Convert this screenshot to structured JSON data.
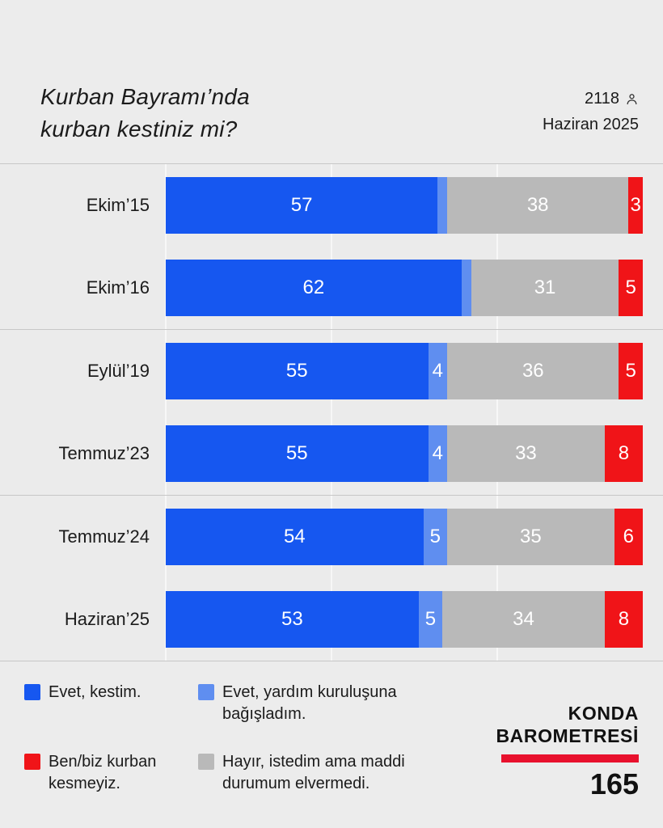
{
  "header": {
    "title_line1": "Kurban Bayramı’nda",
    "title_line2": "kurban kestiniz mi?",
    "sample_size": "2118",
    "date": "Haziran 2025"
  },
  "chart_data": {
    "type": "bar",
    "orientation": "horizontal",
    "stacked": true,
    "title": "Kurban Bayramı’nda kurban kestiniz mi?",
    "xlim": [
      0,
      100
    ],
    "grid": true,
    "rows_per_group": 2,
    "categories": [
      "Ekim’15",
      "Ekim’16",
      "Eylül’19",
      "Temmuz’23",
      "Temmuz’24",
      "Haziran’25"
    ],
    "series": [
      {
        "name": "Evet, kestim.",
        "color": "#1657F0",
        "values": [
          57,
          62,
          55,
          55,
          54,
          53
        ],
        "labels": [
          "57",
          "62",
          "55",
          "55",
          "54",
          "53"
        ]
      },
      {
        "name": "Evet, yardım kuruluşuna bağışladım.",
        "color": "#5F8EF0",
        "values": [
          2,
          2,
          4,
          4,
          5,
          5
        ],
        "labels": [
          "",
          "",
          "4",
          "4",
          "5",
          "5"
        ]
      },
      {
        "name": "Hayır, istedim ama maddi durumum elvermedi.",
        "color": "#B9B9B9",
        "values": [
          38,
          31,
          36,
          33,
          35,
          34
        ],
        "labels": [
          "38",
          "31",
          "36",
          "33",
          "35",
          "34"
        ]
      },
      {
        "name": "Ben/biz kurban kesmeyiz.",
        "color": "#F01418",
        "values": [
          3,
          5,
          5,
          8,
          6,
          8
        ],
        "labels": [
          "3",
          "5",
          "5",
          "8",
          "6",
          "8"
        ]
      }
    ]
  },
  "legend": [
    {
      "label": "Evet, kestim.",
      "color": "#1657F0"
    },
    {
      "label": "Evet, yardım kuruluşuna bağışladım.",
      "color": "#5F8EF0"
    },
    {
      "label": "Ben/biz kurban kesmeyiz.",
      "color": "#F01418"
    },
    {
      "label": "Hayır, istedim ama maddi durumum elvermedi.",
      "color": "#B9B9B9"
    }
  ],
  "footer": {
    "brand_line1": "KONDA",
    "brand_line2": "BAROMETRESİ",
    "issue": "165",
    "brand_red": "#E8112D"
  }
}
